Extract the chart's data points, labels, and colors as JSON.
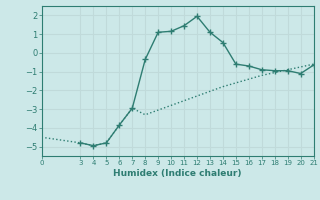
{
  "xlabel": "Humidex (Indice chaleur)",
  "ylabel": "",
  "bg_color": "#cce8e8",
  "grid_color": "#c0dada",
  "line_color": "#2e7d72",
  "xlim": [
    0,
    21
  ],
  "ylim": [
    -5.5,
    2.5
  ],
  "yticks": [
    -5,
    -4,
    -3,
    -2,
    -1,
    0,
    1,
    2
  ],
  "xticks": [
    0,
    3,
    4,
    5,
    6,
    7,
    8,
    9,
    10,
    11,
    12,
    13,
    14,
    15,
    16,
    17,
    18,
    19,
    20,
    21
  ],
  "line1_x": [
    0,
    3,
    4,
    5,
    6,
    7,
    8,
    9,
    10,
    11,
    12,
    13,
    14,
    15,
    16,
    17,
    18,
    19,
    20,
    21
  ],
  "line1_y": [
    -4.5,
    -4.8,
    -4.95,
    -4.8,
    -3.85,
    -2.95,
    -3.3,
    -3.05,
    -2.8,
    -2.55,
    -2.3,
    -2.05,
    -1.8,
    -1.6,
    -1.4,
    -1.2,
    -1.05,
    -0.9,
    -0.75,
    -0.6
  ],
  "line2_x": [
    3,
    4,
    5,
    6,
    7,
    8,
    9,
    10,
    11,
    12,
    13,
    14,
    15,
    16,
    17,
    18,
    19,
    20,
    21
  ],
  "line2_y": [
    -4.8,
    -4.95,
    -4.8,
    -3.85,
    -2.95,
    -0.35,
    1.1,
    1.15,
    1.45,
    1.95,
    1.1,
    0.55,
    -0.6,
    -0.7,
    -0.9,
    -0.95,
    -0.95,
    -1.1,
    -0.65
  ]
}
